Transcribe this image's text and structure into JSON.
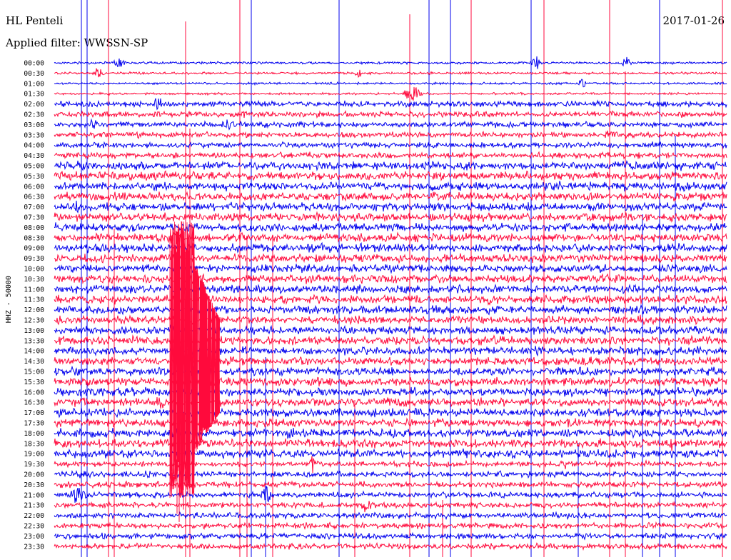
{
  "header": {
    "station": "HL Penteli",
    "filter": "Applied filter: WWSSN-SP",
    "date": "2017-01-26"
  },
  "chart_data": {
    "type": "line",
    "title": "",
    "ylabel": "HHZ - 50000",
    "xlabel": "",
    "colors": {
      "even": "#0000ee",
      "odd": "#ff0a3c"
    },
    "rows": [
      "00:00",
      "00:30",
      "01:00",
      "01:30",
      "02:00",
      "02:30",
      "03:00",
      "03:30",
      "04:00",
      "04:30",
      "05:00",
      "05:30",
      "06:00",
      "06:30",
      "07:00",
      "07:30",
      "08:00",
      "08:30",
      "09:00",
      "09:30",
      "10:00",
      "10:30",
      "11:00",
      "11:30",
      "12:00",
      "12:30",
      "13:00",
      "13:30",
      "14:00",
      "14:30",
      "15:00",
      "15:30",
      "16:00",
      "16:30",
      "17:00",
      "17:30",
      "18:00",
      "18:30",
      "19:00",
      "19:30",
      "20:00",
      "20:30",
      "21:00",
      "21:30",
      "22:00",
      "22:30",
      "23:00",
      "23:30"
    ]
  }
}
